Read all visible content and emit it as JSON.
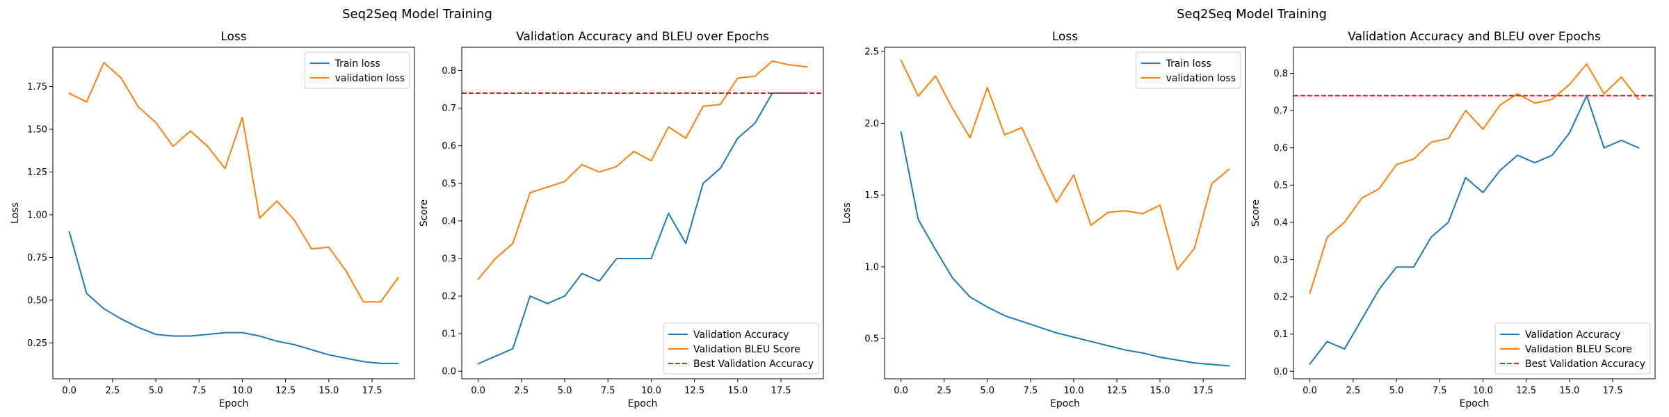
{
  "figure": {
    "suptitles": [
      "Seq2Seq Model Training",
      "Seq2Seq Model Training"
    ]
  },
  "chart_data": [
    {
      "type": "line",
      "title": "Loss",
      "xlabel": "Epoch",
      "ylabel": "Loss",
      "xlim": [
        -0.95,
        19.95
      ],
      "ylim": [
        0.04,
        1.98
      ],
      "xticks": [
        0,
        2.5,
        5,
        7.5,
        10,
        12.5,
        15,
        17.5
      ],
      "xtick_labels": [
        "0.0",
        "2.5",
        "5.0",
        "7.5",
        "10.0",
        "12.5",
        "15.0",
        "17.5"
      ],
      "yticks": [
        0.25,
        0.5,
        0.75,
        1.0,
        1.25,
        1.5,
        1.75
      ],
      "ytick_labels": [
        "0.25",
        "0.50",
        "0.75",
        "1.00",
        "1.25",
        "1.50",
        "1.75"
      ],
      "grid": false,
      "legend_position": "top-right",
      "x": [
        0,
        1,
        2,
        3,
        4,
        5,
        6,
        7,
        8,
        9,
        10,
        11,
        12,
        13,
        14,
        15,
        16,
        17,
        18,
        19
      ],
      "series": [
        {
          "name": "Train loss",
          "color": "#1f77b4",
          "style": "solid",
          "values": [
            0.9,
            0.54,
            0.45,
            0.39,
            0.34,
            0.3,
            0.29,
            0.29,
            0.3,
            0.31,
            0.31,
            0.29,
            0.26,
            0.24,
            0.21,
            0.18,
            0.16,
            0.14,
            0.13,
            0.13
          ]
        },
        {
          "name": "validation loss",
          "color": "#ff7f0e",
          "style": "solid",
          "values": [
            1.71,
            1.66,
            1.89,
            1.8,
            1.63,
            1.54,
            1.4,
            1.49,
            1.4,
            1.27,
            1.57,
            0.98,
            1.08,
            0.97,
            0.8,
            0.81,
            0.67,
            0.49,
            0.49,
            0.63
          ]
        }
      ]
    },
    {
      "type": "line",
      "title": "Validation Accuracy and BLEU over Epochs",
      "xlabel": "Epoch",
      "ylabel": "Score",
      "xlim": [
        -0.95,
        19.95
      ],
      "ylim": [
        -0.02,
        0.862
      ],
      "xticks": [
        0,
        2.5,
        5,
        7.5,
        10,
        12.5,
        15,
        17.5
      ],
      "xtick_labels": [
        "0.0",
        "2.5",
        "5.0",
        "7.5",
        "10.0",
        "12.5",
        "15.0",
        "17.5"
      ],
      "yticks": [
        0,
        0.1,
        0.2,
        0.3,
        0.4,
        0.5,
        0.6,
        0.7,
        0.8
      ],
      "ytick_labels": [
        "0.0",
        "0.1",
        "0.2",
        "0.3",
        "0.4",
        "0.5",
        "0.6",
        "0.7",
        "0.8"
      ],
      "grid": false,
      "legend_position": "bottom-right",
      "x": [
        0,
        1,
        2,
        3,
        4,
        5,
        6,
        7,
        8,
        9,
        10,
        11,
        12,
        13,
        14,
        15,
        16,
        17,
        18,
        19
      ],
      "series": [
        {
          "name": "Validation Accuracy",
          "color": "#1f77b4",
          "style": "solid",
          "values": [
            0.02,
            0.04,
            0.06,
            0.2,
            0.18,
            0.2,
            0.26,
            0.24,
            0.3,
            0.3,
            0.3,
            0.42,
            0.34,
            0.5,
            0.54,
            0.62,
            0.66,
            0.74,
            0.74,
            0.74
          ]
        },
        {
          "name": "Validation BLEU Score",
          "color": "#ff7f0e",
          "style": "solid",
          "values": [
            0.245,
            0.3,
            0.34,
            0.475,
            0.49,
            0.505,
            0.55,
            0.53,
            0.545,
            0.585,
            0.56,
            0.65,
            0.62,
            0.705,
            0.71,
            0.78,
            0.785,
            0.825,
            0.815,
            0.81
          ]
        }
      ],
      "hlines": [
        {
          "name": "Best Validation Accuracy",
          "y": 0.74,
          "color": "#d62728",
          "style": "dashed"
        }
      ]
    },
    {
      "type": "line",
      "title": "Loss",
      "xlabel": "Epoch",
      "ylabel": "Loss",
      "xlim": [
        -0.95,
        19.95
      ],
      "ylim": [
        0.22,
        2.53
      ],
      "xticks": [
        0,
        2.5,
        5,
        7.5,
        10,
        12.5,
        15,
        17.5
      ],
      "xtick_labels": [
        "0.0",
        "2.5",
        "5.0",
        "7.5",
        "10.0",
        "12.5",
        "15.0",
        "17.5"
      ],
      "yticks": [
        0.5,
        1.0,
        1.5,
        2.0,
        2.5
      ],
      "ytick_labels": [
        "0.5",
        "1.0",
        "1.5",
        "2.0",
        "2.5"
      ],
      "grid": false,
      "legend_position": "top-right",
      "x": [
        0,
        1,
        2,
        3,
        4,
        5,
        6,
        7,
        8,
        9,
        10,
        11,
        12,
        13,
        14,
        15,
        16,
        17,
        18,
        19
      ],
      "series": [
        {
          "name": "Train loss",
          "color": "#1f77b4",
          "style": "solid",
          "values": [
            1.94,
            1.33,
            1.12,
            0.92,
            0.79,
            0.72,
            0.66,
            0.62,
            0.58,
            0.54,
            0.51,
            0.48,
            0.45,
            0.42,
            0.4,
            0.37,
            0.35,
            0.33,
            0.32,
            0.31
          ]
        },
        {
          "name": "validation loss",
          "color": "#ff7f0e",
          "style": "solid",
          "values": [
            2.44,
            2.19,
            2.33,
            2.1,
            1.9,
            2.25,
            1.92,
            1.97,
            1.7,
            1.45,
            1.64,
            1.29,
            1.38,
            1.39,
            1.37,
            1.43,
            0.98,
            1.13,
            1.58,
            1.68
          ]
        }
      ]
    },
    {
      "type": "line",
      "title": "Validation Accuracy and BLEU over Epochs",
      "xlabel": "Epoch",
      "ylabel": "Score",
      "xlim": [
        -0.95,
        19.95
      ],
      "ylim": [
        -0.02,
        0.87
      ],
      "xticks": [
        0,
        2.5,
        5,
        7.5,
        10,
        12.5,
        15,
        17.5
      ],
      "xtick_labels": [
        "0.0",
        "2.5",
        "5.0",
        "7.5",
        "10.0",
        "12.5",
        "15.0",
        "17.5"
      ],
      "yticks": [
        0,
        0.1,
        0.2,
        0.3,
        0.4,
        0.5,
        0.6,
        0.7,
        0.8
      ],
      "ytick_labels": [
        "0.0",
        "0.1",
        "0.2",
        "0.3",
        "0.4",
        "0.5",
        "0.6",
        "0.7",
        "0.8"
      ],
      "grid": false,
      "legend_position": "bottom-right",
      "x": [
        0,
        1,
        2,
        3,
        4,
        5,
        6,
        7,
        8,
        9,
        10,
        11,
        12,
        13,
        14,
        15,
        16,
        17,
        18,
        19
      ],
      "series": [
        {
          "name": "Validation Accuracy",
          "color": "#1f77b4",
          "style": "solid",
          "values": [
            0.02,
            0.08,
            0.06,
            0.14,
            0.22,
            0.28,
            0.28,
            0.36,
            0.4,
            0.52,
            0.48,
            0.54,
            0.58,
            0.56,
            0.58,
            0.64,
            0.74,
            0.6,
            0.62,
            0.6
          ]
        },
        {
          "name": "Validation BLEU Score",
          "color": "#ff7f0e",
          "style": "solid",
          "values": [
            0.21,
            0.36,
            0.4,
            0.465,
            0.49,
            0.555,
            0.57,
            0.615,
            0.625,
            0.7,
            0.65,
            0.715,
            0.745,
            0.72,
            0.73,
            0.77,
            0.825,
            0.745,
            0.79,
            0.73
          ]
        }
      ],
      "hlines": [
        {
          "name": "Best Validation Accuracy",
          "y": 0.74,
          "color": "#d62728",
          "style": "dashed"
        }
      ]
    }
  ]
}
